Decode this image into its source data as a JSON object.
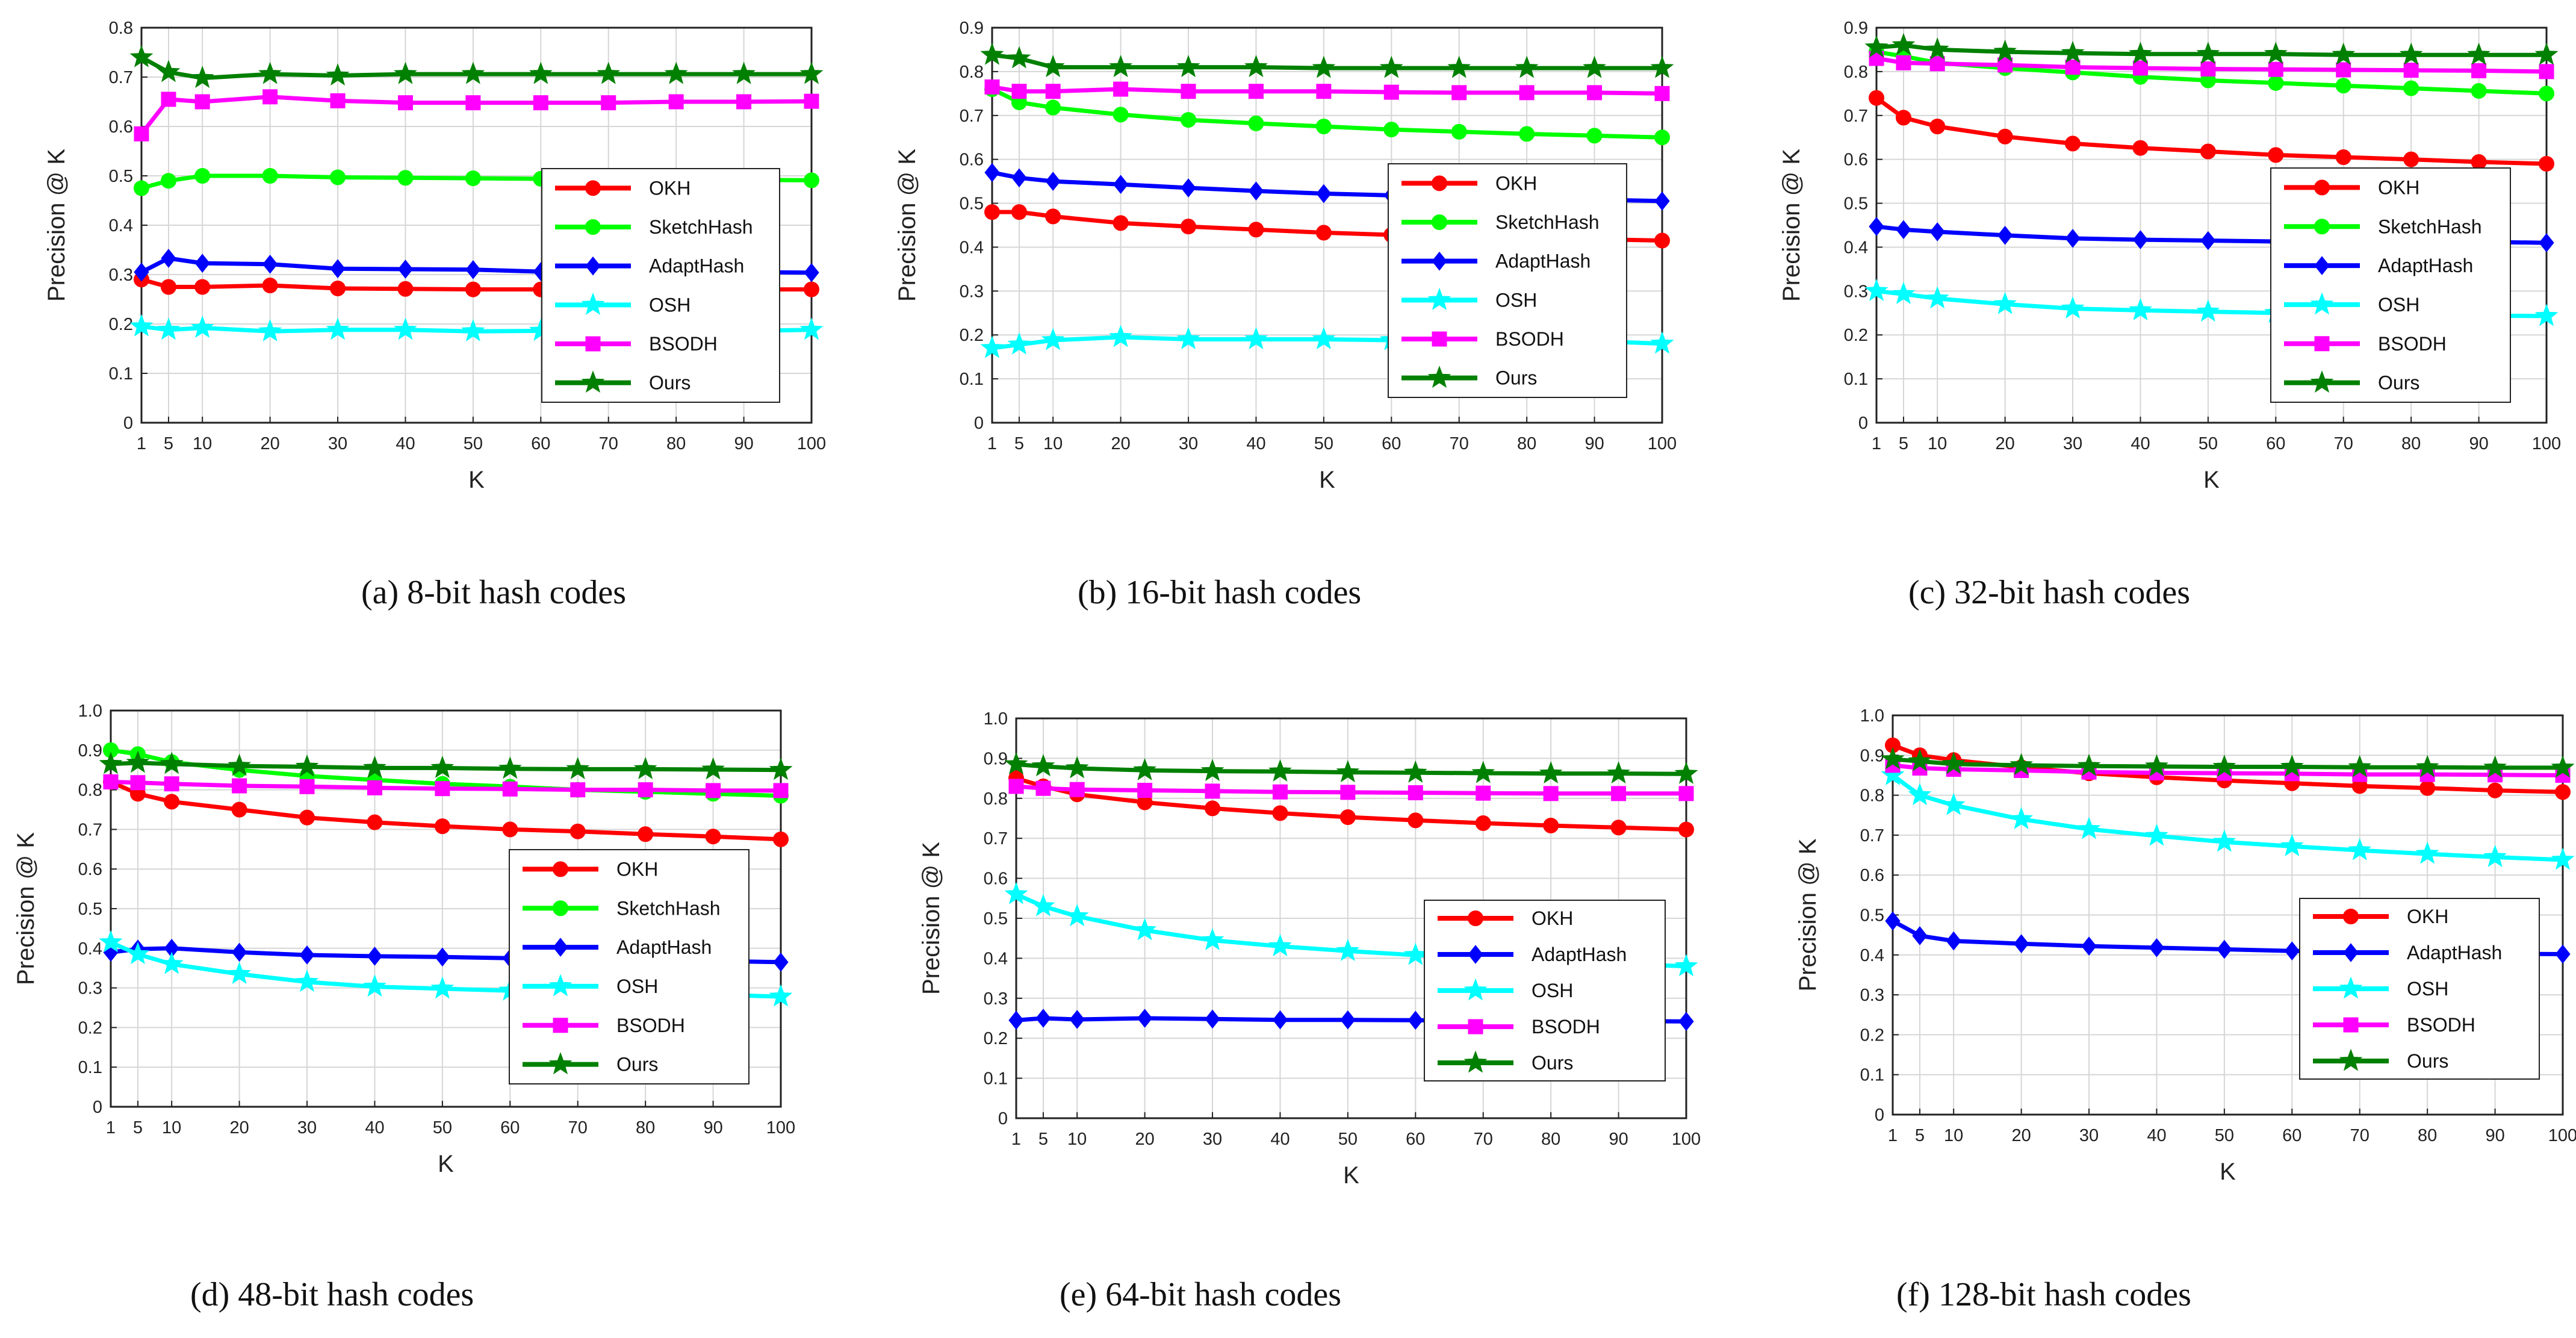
{
  "figure": {
    "x_label": "K",
    "y_label": "Precision @ K",
    "x_ticks": [
      1,
      5,
      10,
      20,
      30,
      40,
      50,
      60,
      70,
      80,
      90,
      100
    ],
    "series_styles": {
      "OKH": {
        "color": "#ff0000",
        "marker": "circle"
      },
      "SketchHash": {
        "color": "#00ff00",
        "marker": "circle"
      },
      "AdaptHash": {
        "color": "#0000ff",
        "marker": "diamond"
      },
      "OSH": {
        "color": "#00ffff",
        "marker": "star"
      },
      "BSODH": {
        "color": "#ff00ff",
        "marker": "square"
      },
      "Ours": {
        "color": "#008000",
        "marker": "star"
      }
    }
  },
  "chart_data": [
    {
      "type": "line",
      "caption": "(a)  8-bit  hash  codes",
      "x": [
        1,
        5,
        10,
        20,
        30,
        40,
        50,
        60,
        70,
        80,
        90,
        100
      ],
      "ylim": [
        0,
        0.8
      ],
      "y_ticks": [
        "0",
        "0.1",
        "0.2",
        "0.3",
        "0.4",
        "0.5",
        "0.6",
        "0.7",
        "0.8"
      ],
      "legend_position": "center-right",
      "series": [
        {
          "name": "OKH",
          "values": [
            0.29,
            0.275,
            0.275,
            0.278,
            0.272,
            0.271,
            0.27,
            0.27,
            0.27,
            0.27,
            0.27,
            0.27
          ]
        },
        {
          "name": "SketchHash",
          "values": [
            0.475,
            0.49,
            0.5,
            0.5,
            0.497,
            0.496,
            0.495,
            0.494,
            0.493,
            0.492,
            0.492,
            0.491
          ]
        },
        {
          "name": "AdaptHash",
          "values": [
            0.305,
            0.333,
            0.323,
            0.321,
            0.312,
            0.311,
            0.31,
            0.306,
            0.305,
            0.305,
            0.305,
            0.304
          ]
        },
        {
          "name": "OSH",
          "values": [
            0.195,
            0.188,
            0.192,
            0.185,
            0.188,
            0.188,
            0.185,
            0.186,
            0.186,
            0.186,
            0.186,
            0.188
          ]
        },
        {
          "name": "BSODH",
          "values": [
            0.585,
            0.655,
            0.65,
            0.66,
            0.652,
            0.648,
            0.648,
            0.648,
            0.648,
            0.65,
            0.65,
            0.651
          ]
        },
        {
          "name": "Ours",
          "values": [
            0.74,
            0.71,
            0.698,
            0.706,
            0.703,
            0.706,
            0.706,
            0.706,
            0.706,
            0.706,
            0.706,
            0.706
          ]
        }
      ]
    },
    {
      "type": "line",
      "caption": "(b)  16-bit  hash  codes",
      "x": [
        1,
        5,
        10,
        20,
        30,
        40,
        50,
        60,
        70,
        80,
        90,
        100
      ],
      "ylim": [
        0,
        0.9
      ],
      "y_ticks": [
        "0",
        "0.1",
        "0.2",
        "0.3",
        "0.4",
        "0.5",
        "0.6",
        "0.7",
        "0.8",
        "0.9"
      ],
      "legend_position": "center-right",
      "series": [
        {
          "name": "OKH",
          "values": [
            0.48,
            0.48,
            0.47,
            0.455,
            0.447,
            0.44,
            0.433,
            0.428,
            0.425,
            0.42,
            0.418,
            0.415
          ]
        },
        {
          "name": "SketchHash",
          "values": [
            0.76,
            0.73,
            0.718,
            0.702,
            0.69,
            0.682,
            0.675,
            0.668,
            0.663,
            0.658,
            0.654,
            0.65
          ]
        },
        {
          "name": "AdaptHash",
          "values": [
            0.57,
            0.558,
            0.55,
            0.543,
            0.535,
            0.528,
            0.522,
            0.518,
            0.515,
            0.512,
            0.508,
            0.505
          ]
        },
        {
          "name": "OSH",
          "values": [
            0.17,
            0.178,
            0.188,
            0.195,
            0.19,
            0.19,
            0.19,
            0.188,
            0.186,
            0.186,
            0.186,
            0.18
          ]
        },
        {
          "name": "BSODH",
          "values": [
            0.765,
            0.755,
            0.755,
            0.76,
            0.755,
            0.755,
            0.755,
            0.753,
            0.752,
            0.752,
            0.752,
            0.75
          ]
        },
        {
          "name": "Ours",
          "values": [
            0.838,
            0.83,
            0.81,
            0.81,
            0.81,
            0.81,
            0.808,
            0.808,
            0.808,
            0.808,
            0.808,
            0.808
          ]
        }
      ]
    },
    {
      "type": "line",
      "caption": "(c)  32-bit  hash  codes",
      "x": [
        1,
        5,
        10,
        20,
        30,
        40,
        50,
        60,
        70,
        80,
        90,
        100
      ],
      "ylim": [
        0,
        0.9
      ],
      "y_ticks": [
        "0",
        "0.1",
        "0.2",
        "0.3",
        "0.4",
        "0.5",
        "0.6",
        "0.7",
        "0.8",
        "0.9"
      ],
      "legend_position": "center-right",
      "series": [
        {
          "name": "OKH",
          "values": [
            0.74,
            0.695,
            0.675,
            0.652,
            0.636,
            0.626,
            0.618,
            0.61,
            0.605,
            0.6,
            0.594,
            0.59
          ]
        },
        {
          "name": "SketchHash",
          "values": [
            0.845,
            0.835,
            0.82,
            0.808,
            0.798,
            0.788,
            0.78,
            0.774,
            0.768,
            0.762,
            0.756,
            0.75
          ]
        },
        {
          "name": "AdaptHash",
          "values": [
            0.447,
            0.44,
            0.435,
            0.427,
            0.42,
            0.417,
            0.415,
            0.413,
            0.412,
            0.412,
            0.412,
            0.41
          ]
        },
        {
          "name": "OSH",
          "values": [
            0.3,
            0.293,
            0.283,
            0.27,
            0.26,
            0.256,
            0.253,
            0.25,
            0.248,
            0.246,
            0.244,
            0.243
          ]
        },
        {
          "name": "BSODH",
          "values": [
            0.83,
            0.82,
            0.818,
            0.815,
            0.81,
            0.808,
            0.806,
            0.805,
            0.804,
            0.803,
            0.802,
            0.8
          ]
        },
        {
          "name": "Ours",
          "values": [
            0.855,
            0.86,
            0.85,
            0.845,
            0.842,
            0.84,
            0.84,
            0.84,
            0.838,
            0.838,
            0.838,
            0.838
          ]
        }
      ]
    },
    {
      "type": "line",
      "caption": "(d)  48-bit  hash  codes",
      "x": [
        1,
        5,
        10,
        20,
        30,
        40,
        50,
        60,
        70,
        80,
        90,
        100
      ],
      "ylim": [
        0,
        1.0
      ],
      "y_ticks": [
        "0",
        "0.1",
        "0.2",
        "0.3",
        "0.4",
        "0.5",
        "0.6",
        "0.7",
        "0.8",
        "0.9",
        "1.0"
      ],
      "legend_position": "center-right",
      "series": [
        {
          "name": "OKH",
          "values": [
            0.82,
            0.79,
            0.77,
            0.75,
            0.73,
            0.718,
            0.708,
            0.7,
            0.695,
            0.688,
            0.682,
            0.675
          ]
        },
        {
          "name": "SketchHash",
          "values": [
            0.9,
            0.89,
            0.87,
            0.85,
            0.835,
            0.825,
            0.815,
            0.808,
            0.8,
            0.795,
            0.79,
            0.785
          ]
        },
        {
          "name": "AdaptHash",
          "values": [
            0.39,
            0.398,
            0.4,
            0.39,
            0.383,
            0.38,
            0.378,
            0.375,
            0.373,
            0.37,
            0.368,
            0.365
          ]
        },
        {
          "name": "OSH",
          "values": [
            0.415,
            0.385,
            0.36,
            0.335,
            0.315,
            0.303,
            0.298,
            0.293,
            0.29,
            0.287,
            0.283,
            0.278
          ]
        },
        {
          "name": "BSODH",
          "values": [
            0.82,
            0.818,
            0.815,
            0.81,
            0.808,
            0.805,
            0.803,
            0.802,
            0.8,
            0.8,
            0.798,
            0.798
          ]
        },
        {
          "name": "Ours",
          "values": [
            0.865,
            0.868,
            0.865,
            0.86,
            0.858,
            0.855,
            0.855,
            0.853,
            0.852,
            0.852,
            0.851,
            0.85
          ]
        }
      ]
    },
    {
      "type": "line",
      "caption": "(e)  64-bit  hash  codes",
      "x": [
        1,
        5,
        10,
        20,
        30,
        40,
        50,
        60,
        70,
        80,
        90,
        100
      ],
      "ylim": [
        0,
        1.0
      ],
      "y_ticks": [
        "0",
        "0.1",
        "0.2",
        "0.3",
        "0.4",
        "0.5",
        "0.6",
        "0.7",
        "0.8",
        "0.9",
        "1.0"
      ],
      "legend_position": "center-right",
      "series": [
        {
          "name": "OKH",
          "values": [
            0.85,
            0.83,
            0.81,
            0.79,
            0.775,
            0.763,
            0.753,
            0.745,
            0.738,
            0.732,
            0.727,
            0.722
          ]
        },
        {
          "name": "AdaptHash",
          "values": [
            0.245,
            0.25,
            0.247,
            0.25,
            0.248,
            0.246,
            0.246,
            0.245,
            0.244,
            0.243,
            0.243,
            0.242
          ]
        },
        {
          "name": "OSH",
          "values": [
            0.56,
            0.53,
            0.505,
            0.47,
            0.445,
            0.43,
            0.418,
            0.408,
            0.4,
            0.393,
            0.386,
            0.38
          ]
        },
        {
          "name": "BSODH",
          "values": [
            0.83,
            0.825,
            0.822,
            0.82,
            0.818,
            0.816,
            0.815,
            0.814,
            0.813,
            0.812,
            0.812,
            0.812
          ]
        },
        {
          "name": "Ours",
          "values": [
            0.885,
            0.88,
            0.875,
            0.87,
            0.868,
            0.867,
            0.865,
            0.864,
            0.863,
            0.862,
            0.862,
            0.861
          ]
        }
      ]
    },
    {
      "type": "line",
      "caption": "(f)  128-bit  hash  codes",
      "x": [
        1,
        5,
        10,
        20,
        30,
        40,
        50,
        60,
        70,
        80,
        90,
        100
      ],
      "ylim": [
        0,
        1.0
      ],
      "y_ticks": [
        "0",
        "0.1",
        "0.2",
        "0.3",
        "0.4",
        "0.5",
        "0.6",
        "0.7",
        "0.8",
        "0.9",
        "1.0"
      ],
      "legend_position": "center-right",
      "series": [
        {
          "name": "OKH",
          "values": [
            0.925,
            0.9,
            0.888,
            0.87,
            0.855,
            0.845,
            0.837,
            0.83,
            0.823,
            0.818,
            0.812,
            0.808
          ]
        },
        {
          "name": "AdaptHash",
          "values": [
            0.485,
            0.448,
            0.435,
            0.428,
            0.422,
            0.418,
            0.414,
            0.41,
            0.407,
            0.405,
            0.403,
            0.402
          ]
        },
        {
          "name": "OSH",
          "values": [
            0.85,
            0.8,
            0.775,
            0.74,
            0.715,
            0.698,
            0.683,
            0.672,
            0.662,
            0.653,
            0.645,
            0.638
          ]
        },
        {
          "name": "BSODH",
          "values": [
            0.875,
            0.868,
            0.865,
            0.862,
            0.858,
            0.856,
            0.855,
            0.854,
            0.852,
            0.852,
            0.851,
            0.85
          ]
        },
        {
          "name": "Ours",
          "values": [
            0.89,
            0.885,
            0.878,
            0.875,
            0.873,
            0.872,
            0.871,
            0.871,
            0.87,
            0.87,
            0.869,
            0.869
          ]
        }
      ]
    }
  ]
}
